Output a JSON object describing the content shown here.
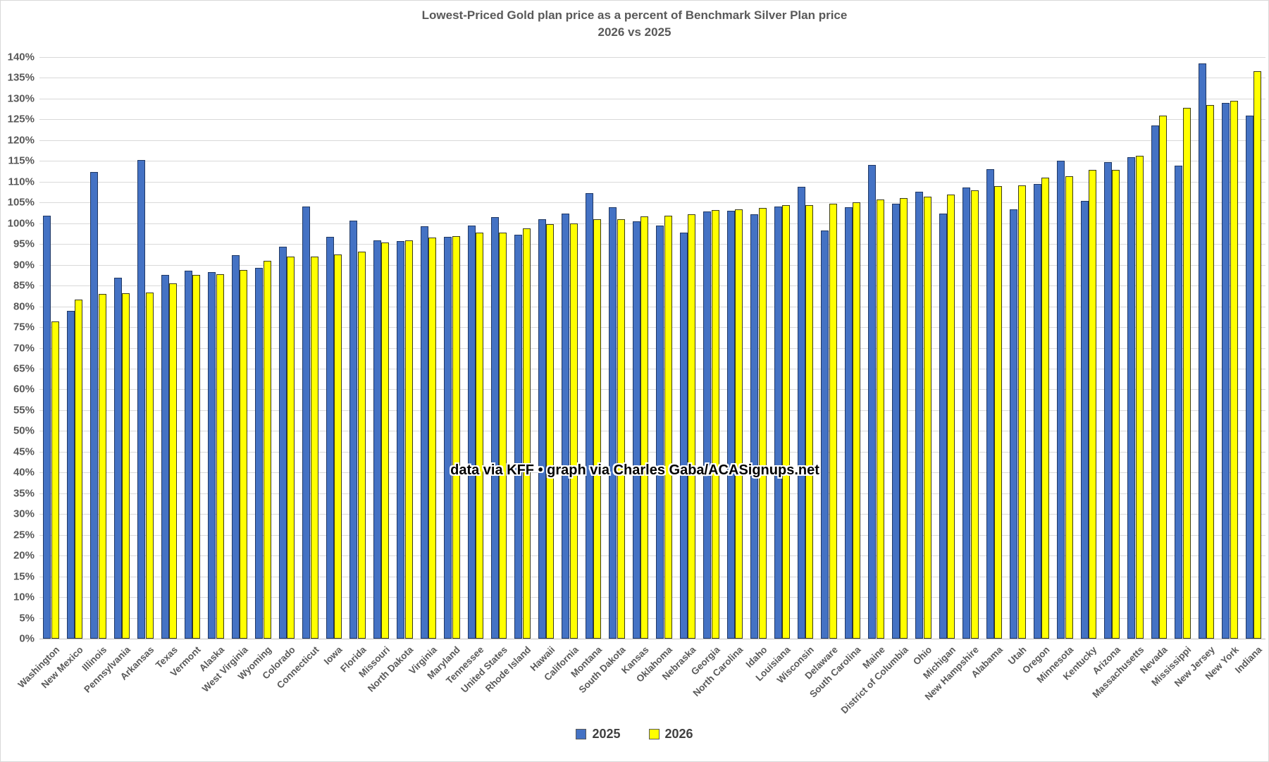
{
  "title": {
    "line1": "Lowest-Priced Gold plan price as a percent of Benchmark Silver Plan price",
    "line2": "2026 vs 2025"
  },
  "annotation": "data via KFF • graph via Charles Gaba/ACASignups.net",
  "legend": {
    "items": [
      {
        "label": "2025",
        "color": "#4472C4"
      },
      {
        "label": "2026",
        "color": "#FFFF00"
      }
    ]
  },
  "colors": {
    "bar_2025": "#4472C4",
    "bar_2026": "#FFFF00",
    "gridline": "#d9d9d9",
    "axis_text": "#595959"
  },
  "chart_data": {
    "type": "bar",
    "title": "Lowest-Priced Gold plan price as a percent of Benchmark Silver Plan price 2026 vs 2025",
    "ylim": [
      0,
      140
    ],
    "ytick_step": 5,
    "ytick_format": "percent",
    "grid": true,
    "legend_position": "bottom",
    "categories": [
      "Washington",
      "New Mexico",
      "Illinois",
      "Pennsylvania",
      "Arkansas",
      "Texas",
      "Vermont",
      "Alaska",
      "West Virginia",
      "Wyoming",
      "Colorado",
      "Connecticut",
      "Iowa",
      "Florida",
      "Missouri",
      "North Dakota",
      "Virginia",
      "Maryland",
      "Tennessee",
      "United States",
      "Rhode Island",
      "Hawaii",
      "California",
      "Montana",
      "South Dakota",
      "Kansas",
      "Oklahoma",
      "Nebraska",
      "Georgia",
      "North Carolina",
      "Idaho",
      "Louisiana",
      "Wisconsin",
      "Delaware",
      "South Carolina",
      "Maine",
      "District of Columbia",
      "Ohio",
      "Michigan",
      "New Hampshire",
      "Alabama",
      "Utah",
      "Oregon",
      "Minnesota",
      "Kentucky",
      "Arizona",
      "Massachusetts",
      "Nevada",
      "Mississippi",
      "New Jersey",
      "New York",
      "Indiana"
    ],
    "series": [
      {
        "name": "2025",
        "color": "#4472C4",
        "values": [
          101.9,
          78.9,
          112.4,
          86.9,
          115.2,
          87.6,
          88.5,
          88.2,
          92.3,
          89.2,
          94.3,
          104.0,
          96.7,
          100.6,
          95.9,
          95.7,
          99.2,
          96.7,
          99.5,
          101.5,
          97.3,
          101.0,
          102.3,
          107.2,
          103.9,
          100.5,
          99.5,
          97.8,
          102.8,
          103.0,
          102.2,
          104.1,
          108.7,
          98.3,
          103.9,
          114.1,
          104.7,
          107.6,
          102.3,
          108.6,
          113.0,
          103.4,
          109.4,
          115.0,
          105.4,
          114.8,
          115.9,
          123.6,
          113.9,
          138.4,
          128.9,
          126.0
        ]
      },
      {
        "name": "2026",
        "color": "#FFFF00",
        "values": [
          76.3,
          81.6,
          83.0,
          83.2,
          83.3,
          85.5,
          87.6,
          87.7,
          88.8,
          91.0,
          91.9,
          92.0,
          92.5,
          93.2,
          95.4,
          95.9,
          96.5,
          96.9,
          97.7,
          97.8,
          98.7,
          99.7,
          99.9,
          100.9,
          101.0,
          101.6,
          101.8,
          102.2,
          103.2,
          103.3,
          103.7,
          104.3,
          104.4,
          104.7,
          105.0,
          105.7,
          106.1,
          106.4,
          106.9,
          107.9,
          109.0,
          109.2,
          110.9,
          111.4,
          112.8,
          112.9,
          116.2,
          126.0,
          127.8,
          128.5,
          129.5,
          136.6
        ]
      }
    ]
  }
}
